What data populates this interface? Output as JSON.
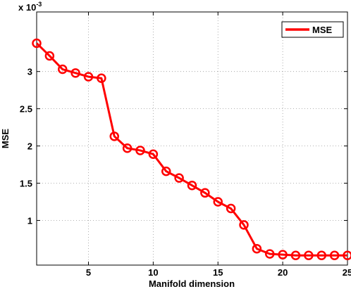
{
  "chart_data": {
    "type": "line",
    "title": "",
    "xlabel": "Manifold dimension",
    "ylabel": "MSE",
    "y_scale_label": "x 10",
    "y_scale_exponent": "-3",
    "xlim": [
      1,
      25
    ],
    "ylim": [
      0.0004,
      0.0038
    ],
    "grid": true,
    "legend_position": "top-right",
    "x_ticks": [
      5,
      10,
      15,
      20,
      25
    ],
    "x_tick_labels": [
      "5",
      "10",
      "15",
      "20",
      "25"
    ],
    "y_ticks": [
      0.001,
      0.0015,
      0.002,
      0.0025,
      0.003
    ],
    "y_tick_labels": [
      "1",
      "1.5",
      "2",
      "2.5",
      "3"
    ],
    "series": [
      {
        "name": "MSE",
        "color": "#ff0000",
        "marker": "circle",
        "x": [
          1,
          2,
          3,
          4,
          5,
          6,
          7,
          8,
          9,
          10,
          11,
          12,
          13,
          14,
          15,
          16,
          17,
          18,
          19,
          20,
          21,
          22,
          23,
          24,
          25
        ],
        "values": [
          0.00338,
          0.00321,
          0.00303,
          0.00298,
          0.00293,
          0.00291,
          0.00213,
          0.00197,
          0.00194,
          0.00189,
          0.00166,
          0.00157,
          0.00147,
          0.00137,
          0.00125,
          0.00116,
          0.00094,
          0.00062,
          0.00055,
          0.00054,
          0.00053,
          0.00053,
          0.00053,
          0.00053,
          0.00053
        ]
      }
    ]
  }
}
